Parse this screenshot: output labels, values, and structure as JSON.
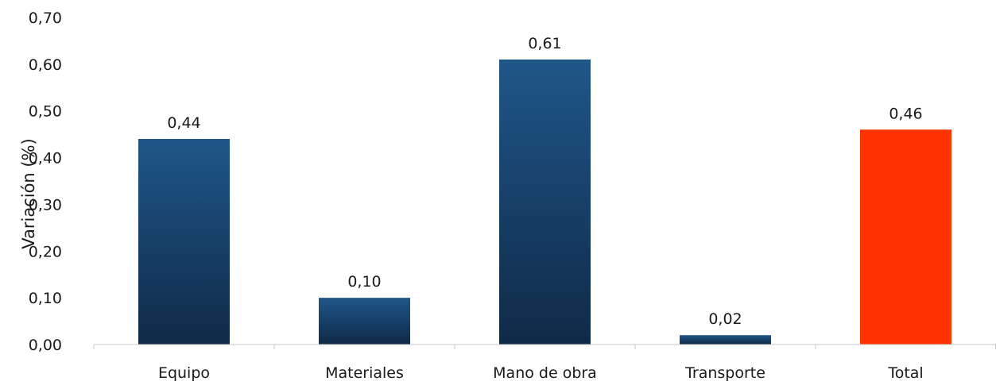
{
  "chart_data": {
    "type": "bar",
    "title": "",
    "xlabel": "",
    "ylabel": "Variación (%)",
    "categories": [
      "Equipo",
      "Materiales",
      "Mano de obra",
      "Transporte",
      "Total"
    ],
    "values": [
      0.44,
      0.1,
      0.61,
      0.02,
      0.46
    ],
    "value_labels": [
      "0,44",
      "0,10",
      "0,61",
      "0,02",
      "0,46"
    ],
    "ylim": [
      0,
      0.7
    ],
    "y_ticks": [
      0,
      0.1,
      0.2,
      0.3,
      0.4,
      0.5,
      0.6,
      0.7
    ],
    "y_tick_labels": [
      "0,00",
      "0,10",
      "0,20",
      "0,30",
      "0,40",
      "0,50",
      "0,60",
      "0,70"
    ],
    "grid": false,
    "legend": "none",
    "colors": {
      "bar_gradient_top": "#1f5689",
      "bar_gradient_bottom": "#0f2a47",
      "highlight": "#ff3300",
      "axis": "#c8c8c8"
    },
    "highlight_category": "Total"
  }
}
